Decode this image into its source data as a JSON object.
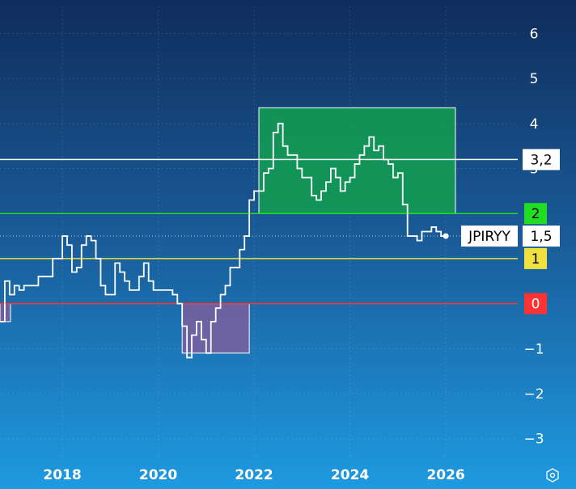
{
  "chart_data": {
    "type": "line",
    "series": [
      {
        "name": "JPIRYY",
        "color": "#ffffff",
        "step": true,
        "x": [
          2016.7,
          2016.8,
          2016.9,
          2017.0,
          2017.1,
          2017.2,
          2017.3,
          2017.4,
          2017.5,
          2017.6,
          2017.7,
          2017.8,
          2017.9,
          2018.0,
          2018.1,
          2018.2,
          2018.3,
          2018.4,
          2018.5,
          2018.6,
          2018.7,
          2018.8,
          2018.9,
          2019.0,
          2019.1,
          2019.2,
          2019.3,
          2019.4,
          2019.5,
          2019.6,
          2019.7,
          2019.8,
          2019.9,
          2020.0,
          2020.1,
          2020.2,
          2020.3,
          2020.4,
          2020.5,
          2020.6,
          2020.7,
          2020.8,
          2020.9,
          2021.0,
          2021.1,
          2021.2,
          2021.3,
          2021.4,
          2021.5,
          2021.6,
          2021.7,
          2021.8,
          2021.9,
          2022.0,
          2022.1,
          2022.2,
          2022.3,
          2022.4,
          2022.5,
          2022.6,
          2022.7,
          2022.8,
          2022.9,
          2023.0,
          2023.1,
          2023.2,
          2023.3,
          2023.4,
          2023.5,
          2023.6,
          2023.7,
          2023.8,
          2023.9,
          2024.0,
          2024.1,
          2024.2,
          2024.3,
          2024.4,
          2024.5,
          2024.6,
          2024.7,
          2024.8,
          2024.9,
          2025.0,
          2025.1,
          2025.2,
          2025.3,
          2025.4,
          2025.5,
          2025.6,
          2025.7,
          2025.8,
          2025.9,
          2026.0
        ],
        "values": [
          -0.4,
          0.5,
          0.2,
          0.4,
          0.3,
          0.4,
          0.4,
          0.4,
          0.6,
          0.6,
          0.6,
          1.0,
          1.0,
          1.5,
          1.3,
          0.7,
          0.8,
          1.3,
          1.5,
          1.4,
          1.0,
          0.4,
          0.2,
          0.2,
          0.9,
          0.7,
          0.5,
          0.3,
          0.3,
          0.6,
          0.9,
          0.5,
          0.3,
          0.3,
          0.3,
          0.3,
          0.2,
          0.0,
          -0.5,
          -1.2,
          -0.7,
          -0.4,
          -0.8,
          -1.1,
          -0.4,
          -0.1,
          0.2,
          0.4,
          0.8,
          0.8,
          1.2,
          1.5,
          2.3,
          2.5,
          2.5,
          2.9,
          3.0,
          3.8,
          4.0,
          3.5,
          3.3,
          3.3,
          3.0,
          2.8,
          2.8,
          2.4,
          2.3,
          2.5,
          2.7,
          3.0,
          2.8,
          2.5,
          2.7,
          2.8,
          3.1,
          3.3,
          3.5,
          3.7,
          3.4,
          3.5,
          3.2,
          3.1,
          2.8,
          2.9,
          2.2,
          1.5,
          1.5,
          1.4,
          1.6,
          1.6,
          1.7,
          1.6,
          1.5,
          1.5
        ],
        "last_label": "JPIRYY",
        "last_value_label": "1,5"
      }
    ],
    "x_ticks": [
      "2018",
      "2020",
      "2022",
      "2024",
      "2026"
    ],
    "x_tick_values": [
      2018,
      2020,
      2022,
      2024,
      2026
    ],
    "xlim": [
      2016.7,
      2027.5
    ],
    "y_ticks": [
      "6",
      "5",
      "4",
      "3",
      "2",
      "1",
      "0",
      "−1",
      "−2",
      "−3"
    ],
    "y_tick_values": [
      6,
      5,
      4,
      3,
      2,
      1,
      0,
      -1,
      -2,
      -3
    ],
    "ylim": [
      -3.4,
      6.6
    ],
    "reference_lines": [
      {
        "value": 3.2,
        "label": "3,2",
        "color": "#ffffff",
        "label_bg": "#ffffff",
        "label_color": "#000000"
      },
      {
        "value": 2,
        "label": "2",
        "color": "#22dd22",
        "label_bg": "#22dd22",
        "label_color": "#000000"
      },
      {
        "value": 1,
        "label": "1",
        "color": "#f0e040",
        "label_bg": "#f0e040",
        "label_color": "#000000"
      },
      {
        "value": 0,
        "label": "0",
        "color": "#ff3333",
        "label_bg": "#ff3333",
        "label_color": "#ffffff"
      }
    ],
    "zones": [
      {
        "x0": 2022.1,
        "x1": 2026.2,
        "y0": 2.0,
        "y1": 4.35,
        "color": "#12a050"
      },
      {
        "x0": 2020.5,
        "x1": 2021.9,
        "y0": -1.1,
        "y1": 0.0,
        "color": "#7a5f9e"
      },
      {
        "x0": 2016.7,
        "x1": 2016.92,
        "y0": -0.4,
        "y1": 0.0,
        "color": "#7a5f9e"
      }
    ],
    "grid": true,
    "title": "",
    "xlabel": "",
    "ylabel": ""
  },
  "ui": {
    "settings_icon": "hexagon-settings-icon"
  }
}
